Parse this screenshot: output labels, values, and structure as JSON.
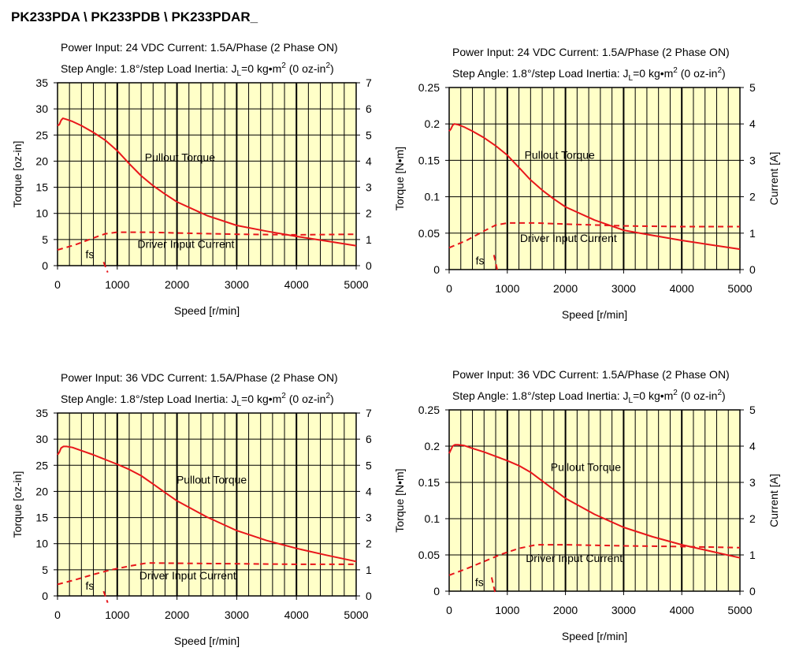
{
  "page_title": "PK233PDA \\ PK233PDB \\ PK233PDAR_",
  "colors": {
    "plot_bg": "#FFFFC8",
    "curve": "#E8161B",
    "grid": "#000000"
  },
  "chart_data": [
    {
      "type": "line",
      "info_line1": "Power Input: 24 VDC  Current: 1.5A/Phase (2 Phase ON)",
      "info_line2": {
        "prefix": "Step Angle: 1.8°/step  Load Inertia: J",
        "sub": "L",
        "mid": "=0 kg•m",
        "sup1": "2",
        "mid2": " (0 oz-in",
        "sup2": "2",
        "end": ")"
      },
      "xlabel": "Speed [r/min]",
      "ylabel": "Torque [oz-in]",
      "y2label": "",
      "xlim": [
        0,
        5000
      ],
      "ylim": [
        0,
        35
      ],
      "y2lim": [
        0,
        7
      ],
      "xticks": [
        0,
        1000,
        2000,
        3000,
        4000,
        5000
      ],
      "yticks": [
        0,
        5,
        10,
        15,
        20,
        25,
        30,
        35
      ],
      "y2ticks": [
        0,
        1,
        2,
        3,
        4,
        5,
        6,
        7
      ],
      "grid": true,
      "annotations": [
        {
          "text": "Pullout Torque",
          "x": 2050,
          "y": 20
        },
        {
          "text": "Driver Input Current",
          "x": 2150,
          "y": 3.4
        },
        {
          "text": "fs",
          "x": 540,
          "y": 1.4
        }
      ],
      "series": [
        {
          "style": "solid",
          "axis": "left",
          "x": [
            0,
            30,
            60,
            90,
            150,
            250,
            400,
            600,
            800,
            1000,
            1200,
            1400,
            1600,
            1800,
            2000,
            2500,
            3000,
            3500,
            4000,
            4500,
            5000
          ],
          "y": [
            26.8,
            27,
            27.8,
            28.2,
            28,
            27.6,
            26.8,
            25.5,
            24,
            22,
            19.5,
            17.2,
            15.3,
            13.7,
            12.2,
            9.6,
            7.7,
            6.6,
            5.6,
            4.7,
            3.8
          ]
        },
        {
          "style": "dashed",
          "axis": "right",
          "x": [
            0,
            300,
            600,
            800,
            1000,
            1500,
            2000,
            3000,
            4000,
            5000
          ],
          "y": [
            0.6,
            0.8,
            1.06,
            1.22,
            1.28,
            1.28,
            1.25,
            1.2,
            1.18,
            1.2
          ]
        },
        {
          "style": "dashed",
          "axis": "left",
          "x": [
            770,
            840
          ],
          "y": [
            0.7,
            -1.3
          ]
        }
      ]
    },
    {
      "type": "line",
      "info_line1": "Power Input: 24 VDC  Current: 1.5A/Phase (2 Phase ON)",
      "info_line2": {
        "prefix": "Step Angle: 1.8°/step  Load Inertia: J",
        "sub": "L",
        "mid": "=0 kg•m",
        "sup1": "2",
        "mid2": " (0 oz-in",
        "sup2": "2",
        "end": ")"
      },
      "xlabel": "Speed [r/min]",
      "ylabel": "Torque [N•m]",
      "y2label": "Current [A]",
      "xlim": [
        0,
        5000
      ],
      "ylim": [
        0,
        0.25
      ],
      "y2lim": [
        0,
        5
      ],
      "xticks": [
        0,
        1000,
        2000,
        3000,
        4000,
        5000
      ],
      "yticks": [
        0,
        0.05,
        0.1,
        0.15,
        0.2,
        0.25
      ],
      "y2ticks": [
        0,
        1,
        2,
        3,
        4,
        5
      ],
      "grid": true,
      "annotations": [
        {
          "text": "Pullout Torque",
          "x": 1900,
          "y": 0.152
        },
        {
          "text": "Driver Input Current",
          "x": 2050,
          "y": 0.038
        },
        {
          "text": "fs",
          "x": 530,
          "y": 0.007
        }
      ],
      "series": [
        {
          "style": "solid",
          "axis": "left",
          "x": [
            0,
            30,
            60,
            90,
            150,
            250,
            400,
            600,
            800,
            1000,
            1200,
            1400,
            1600,
            1800,
            2000,
            2500,
            3000,
            3500,
            4000,
            4500,
            5000
          ],
          "y": [
            0.19,
            0.193,
            0.198,
            0.2,
            0.199,
            0.196,
            0.19,
            0.181,
            0.17,
            0.157,
            0.14,
            0.123,
            0.109,
            0.097,
            0.086,
            0.068,
            0.054,
            0.047,
            0.04,
            0.034,
            0.028
          ]
        },
        {
          "style": "dashed",
          "axis": "right",
          "x": [
            0,
            300,
            600,
            800,
            1000,
            1500,
            2000,
            3000,
            4000,
            5000
          ],
          "y": [
            0.6,
            0.8,
            1.06,
            1.22,
            1.28,
            1.28,
            1.25,
            1.2,
            1.18,
            1.18
          ]
        },
        {
          "style": "dashed",
          "axis": "left",
          "x": [
            770,
            840
          ],
          "y": [
            0.02,
            -0.005
          ]
        }
      ]
    },
    {
      "type": "line",
      "info_line1": "Power Input: 36 VDC  Current: 1.5A/Phase (2 Phase ON)",
      "info_line2": {
        "prefix": "Step Angle: 1.8°/step  Load Inertia: J",
        "sub": "L",
        "mid": "=0 kg•m",
        "sup1": "2",
        "mid2": " (0 oz-in",
        "sup2": "2",
        "end": ")"
      },
      "xlabel": "Speed [r/min]",
      "ylabel": "Torque [oz-in]",
      "y2label": "",
      "xlim": [
        0,
        5000
      ],
      "ylim": [
        0,
        35
      ],
      "y2lim": [
        0,
        7
      ],
      "xticks": [
        0,
        1000,
        2000,
        3000,
        4000,
        5000
      ],
      "yticks": [
        0,
        5,
        10,
        15,
        20,
        25,
        30,
        35
      ],
      "y2ticks": [
        0,
        1,
        2,
        3,
        4,
        5,
        6,
        7
      ],
      "grid": true,
      "annotations": [
        {
          "text": "Pullout Torque",
          "x": 2580,
          "y": 21.5
        },
        {
          "text": "Driver Input Current",
          "x": 2180,
          "y": 3.2
        },
        {
          "text": "fs",
          "x": 540,
          "y": 1.2
        }
      ],
      "series": [
        {
          "style": "solid",
          "axis": "left",
          "x": [
            0,
            30,
            60,
            100,
            150,
            250,
            400,
            600,
            800,
            1000,
            1200,
            1400,
            1600,
            1800,
            2000,
            2500,
            3000,
            3500,
            4000,
            4500,
            5000
          ],
          "y": [
            27,
            27.5,
            28.3,
            28.6,
            28.6,
            28.4,
            27.8,
            27,
            26.1,
            25.2,
            24.2,
            23,
            21.4,
            19.8,
            18.2,
            15.1,
            12.5,
            10.6,
            9.1,
            7.8,
            6.6
          ]
        },
        {
          "style": "dashed",
          "axis": "right",
          "x": [
            0,
            300,
            600,
            900,
            1200,
            1500,
            2000,
            3000,
            4000,
            5000
          ],
          "y": [
            0.44,
            0.62,
            0.82,
            1.0,
            1.14,
            1.26,
            1.25,
            1.23,
            1.21,
            1.21
          ]
        },
        {
          "style": "dashed",
          "axis": "left",
          "x": [
            770,
            840
          ],
          "y": [
            0.9,
            -1.3
          ]
        }
      ]
    },
    {
      "type": "line",
      "info_line1": "Power Input: 36 VDC  Current: 1.5A/Phase (2 Phase ON)",
      "info_line2": {
        "prefix": "Step Angle: 1.8°/step  Load Inertia: J",
        "sub": "L",
        "mid": "=0 kg•m",
        "sup1": "2",
        "mid2": " (0 oz-in",
        "sup2": "2",
        "end": ")"
      },
      "xlabel": "Speed [r/min]",
      "ylabel": "Torque [N•m]",
      "y2label": "Current [A]",
      "xlim": [
        0,
        5000
      ],
      "ylim": [
        0,
        0.25
      ],
      "y2lim": [
        0,
        5
      ],
      "xticks": [
        0,
        1000,
        2000,
        3000,
        4000,
        5000
      ],
      "yticks": [
        0,
        0.05,
        0.1,
        0.15,
        0.2,
        0.25
      ],
      "y2ticks": [
        0,
        1,
        2,
        3,
        4,
        5
      ],
      "grid": true,
      "annotations": [
        {
          "text": "Pullout Torque",
          "x": 2350,
          "y": 0.166
        },
        {
          "text": "Driver Input Current",
          "x": 2150,
          "y": 0.04
        },
        {
          "text": "fs",
          "x": 520,
          "y": 0.007
        }
      ],
      "series": [
        {
          "style": "solid",
          "axis": "left",
          "x": [
            0,
            30,
            60,
            100,
            150,
            250,
            400,
            600,
            800,
            1000,
            1200,
            1400,
            1600,
            1800,
            2000,
            2500,
            3000,
            3500,
            4000,
            4500,
            5000
          ],
          "y": [
            0.19,
            0.195,
            0.2,
            0.202,
            0.202,
            0.201,
            0.197,
            0.192,
            0.186,
            0.18,
            0.173,
            0.164,
            0.152,
            0.14,
            0.128,
            0.106,
            0.088,
            0.075,
            0.064,
            0.055,
            0.046
          ]
        },
        {
          "style": "dashed",
          "axis": "right",
          "x": [
            0,
            300,
            600,
            900,
            1200,
            1500,
            2000,
            3000,
            4000,
            5000
          ],
          "y": [
            0.44,
            0.62,
            0.82,
            1.02,
            1.18,
            1.28,
            1.28,
            1.25,
            1.23,
            1.2
          ]
        },
        {
          "style": "dashed",
          "axis": "left",
          "x": [
            730,
            790
          ],
          "y": [
            0.019,
            -0.002
          ]
        }
      ]
    }
  ]
}
